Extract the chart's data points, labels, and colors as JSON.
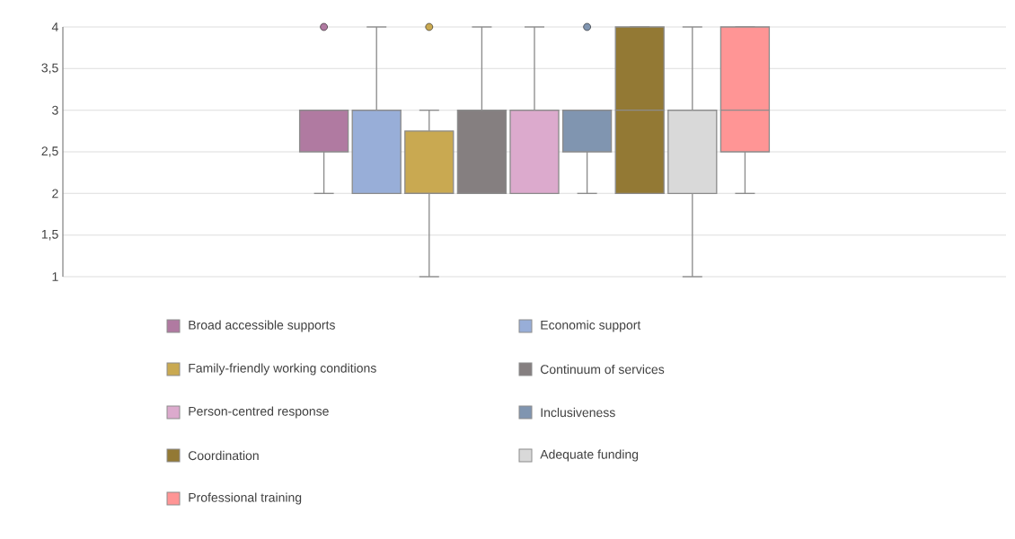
{
  "chart_data": {
    "type": "box",
    "categories": [
      null
    ],
    "ylim": [
      1,
      4
    ],
    "yticks": [
      1,
      {
        "value": 1.5,
        "label": "1,5"
      },
      2,
      {
        "value": 2.5,
        "label": "2,5"
      },
      3,
      {
        "value": 3.5,
        "label": "3,5"
      },
      4
    ],
    "grid": "y",
    "legend": "bottom",
    "series": [
      {
        "name": "Broad accessible supports",
        "color": "#b07aa1",
        "boxes": [
          {
            "low": 2,
            "q1": 2.5,
            "median": 3,
            "q3": 3,
            "high": 3,
            "outliers": [
              4
            ]
          }
        ]
      },
      {
        "name": "Economic support",
        "color": "#98aed8",
        "boxes": [
          {
            "low": 2,
            "q1": 2,
            "median": 3,
            "q3": 3,
            "high": 4
          }
        ]
      },
      {
        "name": "Family-friendly working conditions",
        "color": "#c9a951",
        "boxes": [
          {
            "low": 1,
            "q1": 2,
            "median": 2,
            "q3": 2.75,
            "high": 3,
            "outliers": [
              4
            ]
          }
        ]
      },
      {
        "name": "Continuum of services",
        "color": "#857f80",
        "boxes": [
          {
            "low": 2,
            "q1": 2,
            "median": 3,
            "q3": 3,
            "high": 4
          }
        ]
      },
      {
        "name": "Person-centred response",
        "color": "#dcaacd",
        "boxes": [
          {
            "low": 2,
            "q1": 2,
            "median": 3,
            "q3": 3,
            "high": 4
          }
        ]
      },
      {
        "name": "Inclusiveness",
        "color": "#8095b0",
        "boxes": [
          {
            "low": 2,
            "q1": 2.5,
            "median": 3,
            "q3": 3,
            "high": 3,
            "outliers": [
              4
            ]
          }
        ]
      },
      {
        "name": "Coordination",
        "color": "#937934",
        "boxes": [
          {
            "low": 2,
            "q1": 2,
            "median": 3,
            "q3": 4,
            "high": 4
          }
        ]
      },
      {
        "name": "Adequate funding",
        "color": "#d9d9d9",
        "boxes": [
          {
            "low": 1,
            "q1": 2,
            "median": 3,
            "q3": 3,
            "high": 4
          }
        ]
      },
      {
        "name": "Professional training",
        "color": "#ff9595",
        "boxes": [
          {
            "low": 2,
            "q1": 2.5,
            "median": 3,
            "q3": 4,
            "high": 4
          }
        ]
      }
    ]
  }
}
